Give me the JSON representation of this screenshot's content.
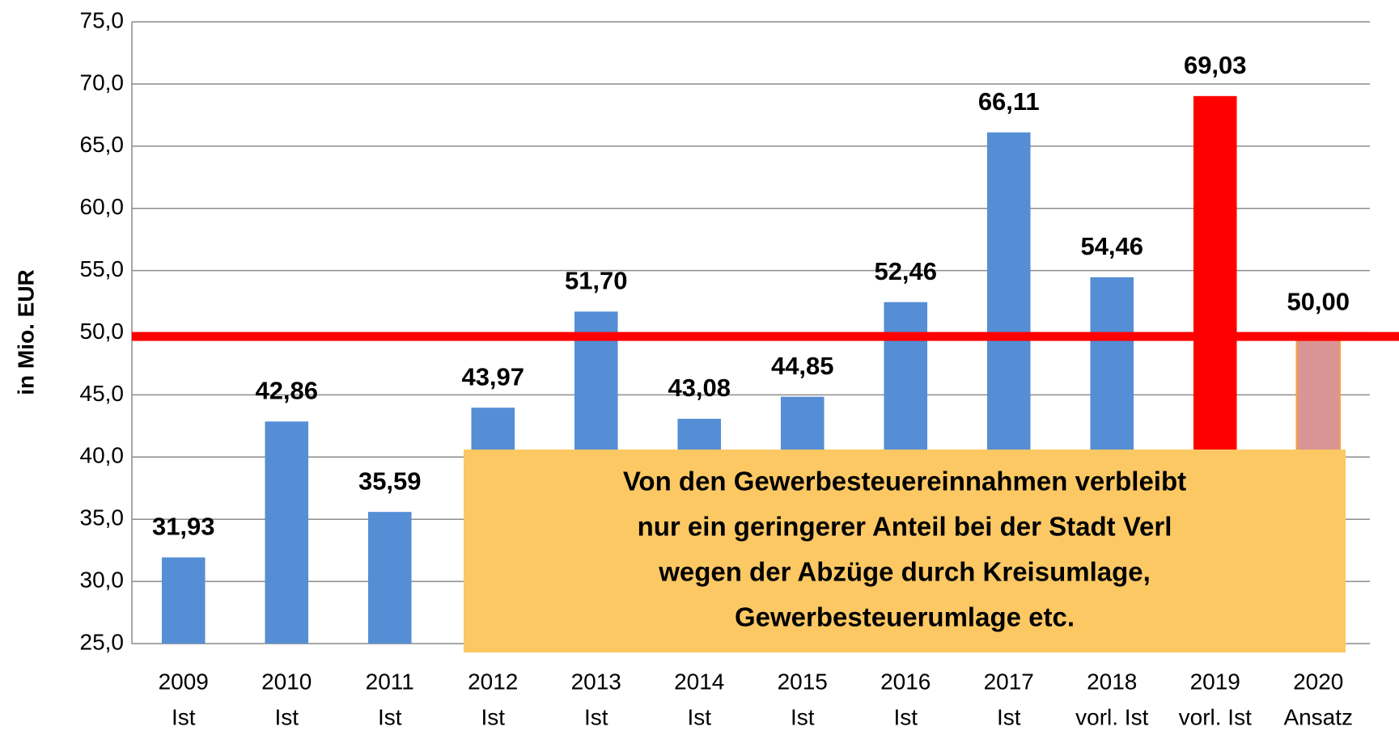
{
  "chart_data": {
    "type": "bar",
    "y_axis_label": "in Mio. EUR",
    "categories": [
      "2009",
      "2010",
      "2011",
      "2012",
      "2013",
      "2014",
      "2015",
      "2016",
      "2017",
      "2018",
      "2019",
      "2020"
    ],
    "category_notes": [
      "Ist",
      "Ist",
      "Ist",
      "Ist",
      "Ist",
      "Ist",
      "Ist",
      "Ist",
      "Ist",
      "vorl. Ist",
      "vorl. Ist",
      "Ansatz"
    ],
    "values": [
      31.93,
      42.86,
      35.59,
      43.97,
      51.7,
      43.08,
      44.85,
      52.46,
      66.11,
      54.46,
      69.03,
      50.0
    ],
    "value_labels": [
      "31,93",
      "42,86",
      "35,59",
      "43,97",
      "51,70",
      "43,08",
      "44,85",
      "52,46",
      "66,11",
      "54,46",
      "69,03",
      "50,00"
    ],
    "colors": [
      "#558ed5",
      "#558ed5",
      "#558ed5",
      "#558ed5",
      "#558ed5",
      "#558ed5",
      "#558ed5",
      "#558ed5",
      "#558ed5",
      "#558ed5",
      "#ff0000",
      "#d99594"
    ],
    "ylim": [
      25,
      75
    ],
    "yticks": [
      {
        "value": 25,
        "label": "25,0"
      },
      {
        "value": 30,
        "label": "30,0"
      },
      {
        "value": 35,
        "label": "35,0"
      },
      {
        "value": 40,
        "label": "40,0"
      },
      {
        "value": 45,
        "label": "45,0"
      },
      {
        "value": 50,
        "label": "50,0"
      },
      {
        "value": 55,
        "label": "55,0"
      },
      {
        "value": 60,
        "label": "60,0"
      },
      {
        "value": 65,
        "label": "65,0"
      },
      {
        "value": 70,
        "label": "70,0"
      },
      {
        "value": 75,
        "label": "75,0"
      }
    ],
    "grid": true,
    "reference_line": {
      "value": 49.7,
      "color": "#ff0000"
    },
    "annotation": [
      "Von den Gewerbesteuereinnahmen verbleibt",
      "nur ein geringerer Anteil bei der Stadt Verl",
      "wegen der Abzüge durch Kreisumlage,",
      "Gewerbesteuerumlage etc."
    ]
  }
}
